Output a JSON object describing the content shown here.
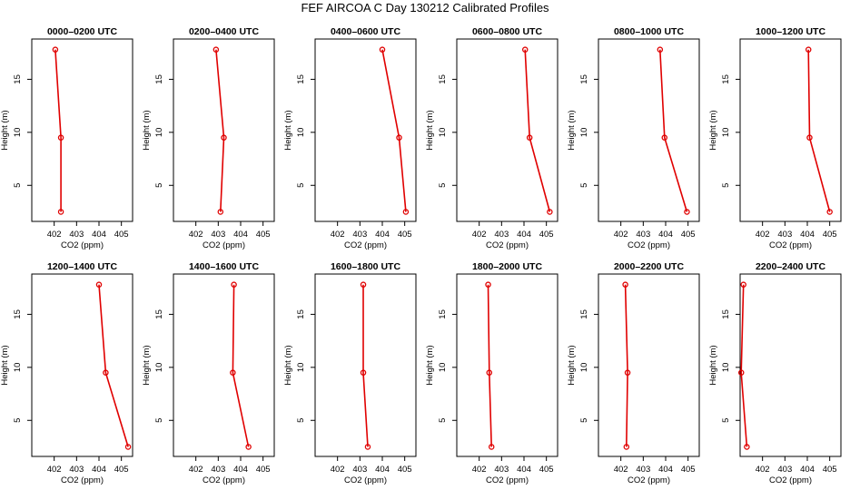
{
  "figure": {
    "title": "FEF AIRCOA C  Day 130212  Calibrated Profiles"
  },
  "style": {
    "line_color": "#e00000",
    "marker_color": "#e00000",
    "axis_color": "#000000"
  },
  "chart_data": [
    {
      "type": "line",
      "title": "0000–0200 UTC",
      "xlabel": "CO2 (ppm)",
      "ylabel": "Height (m)",
      "xlim": [
        401,
        405.5
      ],
      "ylim": [
        1.6,
        18.8
      ],
      "xticks": [
        402,
        403,
        404,
        405
      ],
      "xtick_labels": [
        "402",
        "403",
        "404",
        "405"
      ],
      "yticks": [
        5,
        10,
        15
      ],
      "ytick_labels": [
        "5",
        "10",
        "15"
      ],
      "series": [
        {
          "x": [
            402.05,
            402.3,
            402.3
          ],
          "y": [
            17.8,
            9.5,
            2.5
          ]
        }
      ]
    },
    {
      "type": "line",
      "title": "0200–0400 UTC",
      "xlabel": "CO2 (ppm)",
      "ylabel": "Height (m)",
      "xlim": [
        401,
        405.5
      ],
      "ylim": [
        1.6,
        18.8
      ],
      "xticks": [
        402,
        403,
        404,
        405
      ],
      "xtick_labels": [
        "402",
        "403",
        "404",
        "405"
      ],
      "yticks": [
        5,
        10,
        15
      ],
      "ytick_labels": [
        "5",
        "10",
        "15"
      ],
      "series": [
        {
          "x": [
            402.9,
            403.25,
            403.1
          ],
          "y": [
            17.8,
            9.5,
            2.5
          ]
        }
      ]
    },
    {
      "type": "line",
      "title": "0400–0600 UTC",
      "xlabel": "CO2 (ppm)",
      "ylabel": "Height (m)",
      "xlim": [
        401,
        405.5
      ],
      "ylim": [
        1.6,
        18.8
      ],
      "xticks": [
        402,
        403,
        404,
        405
      ],
      "xtick_labels": [
        "402",
        "403",
        "404",
        "405"
      ],
      "yticks": [
        5,
        10,
        15
      ],
      "ytick_labels": [
        "5",
        "10",
        "15"
      ],
      "series": [
        {
          "x": [
            404.0,
            404.75,
            405.05
          ],
          "y": [
            17.8,
            9.5,
            2.5
          ]
        }
      ]
    },
    {
      "type": "line",
      "title": "0600–0800 UTC",
      "xlabel": "CO2 (ppm)",
      "ylabel": "Height (m)",
      "xlim": [
        401,
        405.5
      ],
      "ylim": [
        1.6,
        18.8
      ],
      "xticks": [
        402,
        403,
        404,
        405
      ],
      "xtick_labels": [
        "402",
        "403",
        "404",
        "405"
      ],
      "yticks": [
        5,
        10,
        15
      ],
      "ytick_labels": [
        "5",
        "10",
        "15"
      ],
      "series": [
        {
          "x": [
            404.05,
            404.25,
            405.15
          ],
          "y": [
            17.8,
            9.5,
            2.5
          ]
        }
      ]
    },
    {
      "type": "line",
      "title": "0800–1000 UTC",
      "xlabel": "CO2 (ppm)",
      "ylabel": "Height (m)",
      "xlim": [
        401,
        405.5
      ],
      "ylim": [
        1.6,
        18.8
      ],
      "xticks": [
        402,
        403,
        404,
        405
      ],
      "xtick_labels": [
        "402",
        "403",
        "404",
        "405"
      ],
      "yticks": [
        5,
        10,
        15
      ],
      "ytick_labels": [
        "5",
        "10",
        "15"
      ],
      "series": [
        {
          "x": [
            403.75,
            403.95,
            404.95
          ],
          "y": [
            17.8,
            9.5,
            2.5
          ]
        }
      ]
    },
    {
      "type": "line",
      "title": "1000–1200 UTC",
      "xlabel": "CO2 (ppm)",
      "ylabel": "Height (m)",
      "xlim": [
        401,
        405.5
      ],
      "ylim": [
        1.6,
        18.8
      ],
      "xticks": [
        402,
        403,
        404,
        405
      ],
      "xtick_labels": [
        "402",
        "403",
        "404",
        "405"
      ],
      "yticks": [
        5,
        10,
        15
      ],
      "ytick_labels": [
        "5",
        "10",
        "15"
      ],
      "series": [
        {
          "x": [
            404.05,
            404.1,
            405.0
          ],
          "y": [
            17.8,
            9.5,
            2.5
          ]
        }
      ]
    },
    {
      "type": "line",
      "title": "1200–1400 UTC",
      "xlabel": "CO2 (ppm)",
      "ylabel": "Height (m)",
      "xlim": [
        401,
        405.5
      ],
      "ylim": [
        1.6,
        18.8
      ],
      "xticks": [
        402,
        403,
        404,
        405
      ],
      "xtick_labels": [
        "402",
        "403",
        "404",
        "405"
      ],
      "yticks": [
        5,
        10,
        15
      ],
      "ytick_labels": [
        "5",
        "10",
        "15"
      ],
      "series": [
        {
          "x": [
            404.0,
            404.3,
            405.3
          ],
          "y": [
            17.8,
            9.5,
            2.5
          ]
        }
      ]
    },
    {
      "type": "line",
      "title": "1400–1600 UTC",
      "xlabel": "CO2 (ppm)",
      "ylabel": "Height (m)",
      "xlim": [
        401,
        405.5
      ],
      "ylim": [
        1.6,
        18.8
      ],
      "xticks": [
        402,
        403,
        404,
        405
      ],
      "xtick_labels": [
        "402",
        "403",
        "404",
        "405"
      ],
      "yticks": [
        5,
        10,
        15
      ],
      "ytick_labels": [
        "5",
        "10",
        "15"
      ],
      "series": [
        {
          "x": [
            403.7,
            403.65,
            404.35
          ],
          "y": [
            17.8,
            9.5,
            2.5
          ]
        }
      ]
    },
    {
      "type": "line",
      "title": "1600–1800 UTC",
      "xlabel": "CO2 (ppm)",
      "ylabel": "Height (m)",
      "xlim": [
        401,
        405.5
      ],
      "ylim": [
        1.6,
        18.8
      ],
      "xticks": [
        402,
        403,
        404,
        405
      ],
      "xtick_labels": [
        "402",
        "403",
        "404",
        "405"
      ],
      "yticks": [
        5,
        10,
        15
      ],
      "ytick_labels": [
        "5",
        "10",
        "15"
      ],
      "series": [
        {
          "x": [
            403.15,
            403.15,
            403.35
          ],
          "y": [
            17.8,
            9.5,
            2.5
          ]
        }
      ]
    },
    {
      "type": "line",
      "title": "1800–2000 UTC",
      "xlabel": "CO2 (ppm)",
      "ylabel": "Height (m)",
      "xlim": [
        401,
        405.5
      ],
      "ylim": [
        1.6,
        18.8
      ],
      "xticks": [
        402,
        403,
        404,
        405
      ],
      "xtick_labels": [
        "402",
        "403",
        "404",
        "405"
      ],
      "yticks": [
        5,
        10,
        15
      ],
      "ytick_labels": [
        "5",
        "10",
        "15"
      ],
      "series": [
        {
          "x": [
            402.4,
            402.45,
            402.55
          ],
          "y": [
            17.8,
            9.5,
            2.5
          ]
        }
      ]
    },
    {
      "type": "line",
      "title": "2000–2200 UTC",
      "xlabel": "CO2 (ppm)",
      "ylabel": "Height (m)",
      "xlim": [
        401,
        405.5
      ],
      "ylim": [
        1.6,
        18.8
      ],
      "xticks": [
        402,
        403,
        404,
        405
      ],
      "xtick_labels": [
        "402",
        "403",
        "404",
        "405"
      ],
      "yticks": [
        5,
        10,
        15
      ],
      "ytick_labels": [
        "5",
        "10",
        "15"
      ],
      "series": [
        {
          "x": [
            402.2,
            402.3,
            402.25
          ],
          "y": [
            17.8,
            9.5,
            2.5
          ]
        }
      ]
    },
    {
      "type": "line",
      "title": "2200–2400 UTC",
      "xlabel": "CO2 (ppm)",
      "ylabel": "Height (m)",
      "xlim": [
        401,
        405.5
      ],
      "ylim": [
        1.6,
        18.8
      ],
      "xticks": [
        402,
        403,
        404,
        405
      ],
      "xtick_labels": [
        "402",
        "403",
        "404",
        "405"
      ],
      "yticks": [
        5,
        10,
        15
      ],
      "ytick_labels": [
        "5",
        "10",
        "15"
      ],
      "series": [
        {
          "x": [
            401.15,
            401.05,
            401.3
          ],
          "y": [
            17.8,
            9.5,
            2.5
          ]
        }
      ]
    }
  ]
}
